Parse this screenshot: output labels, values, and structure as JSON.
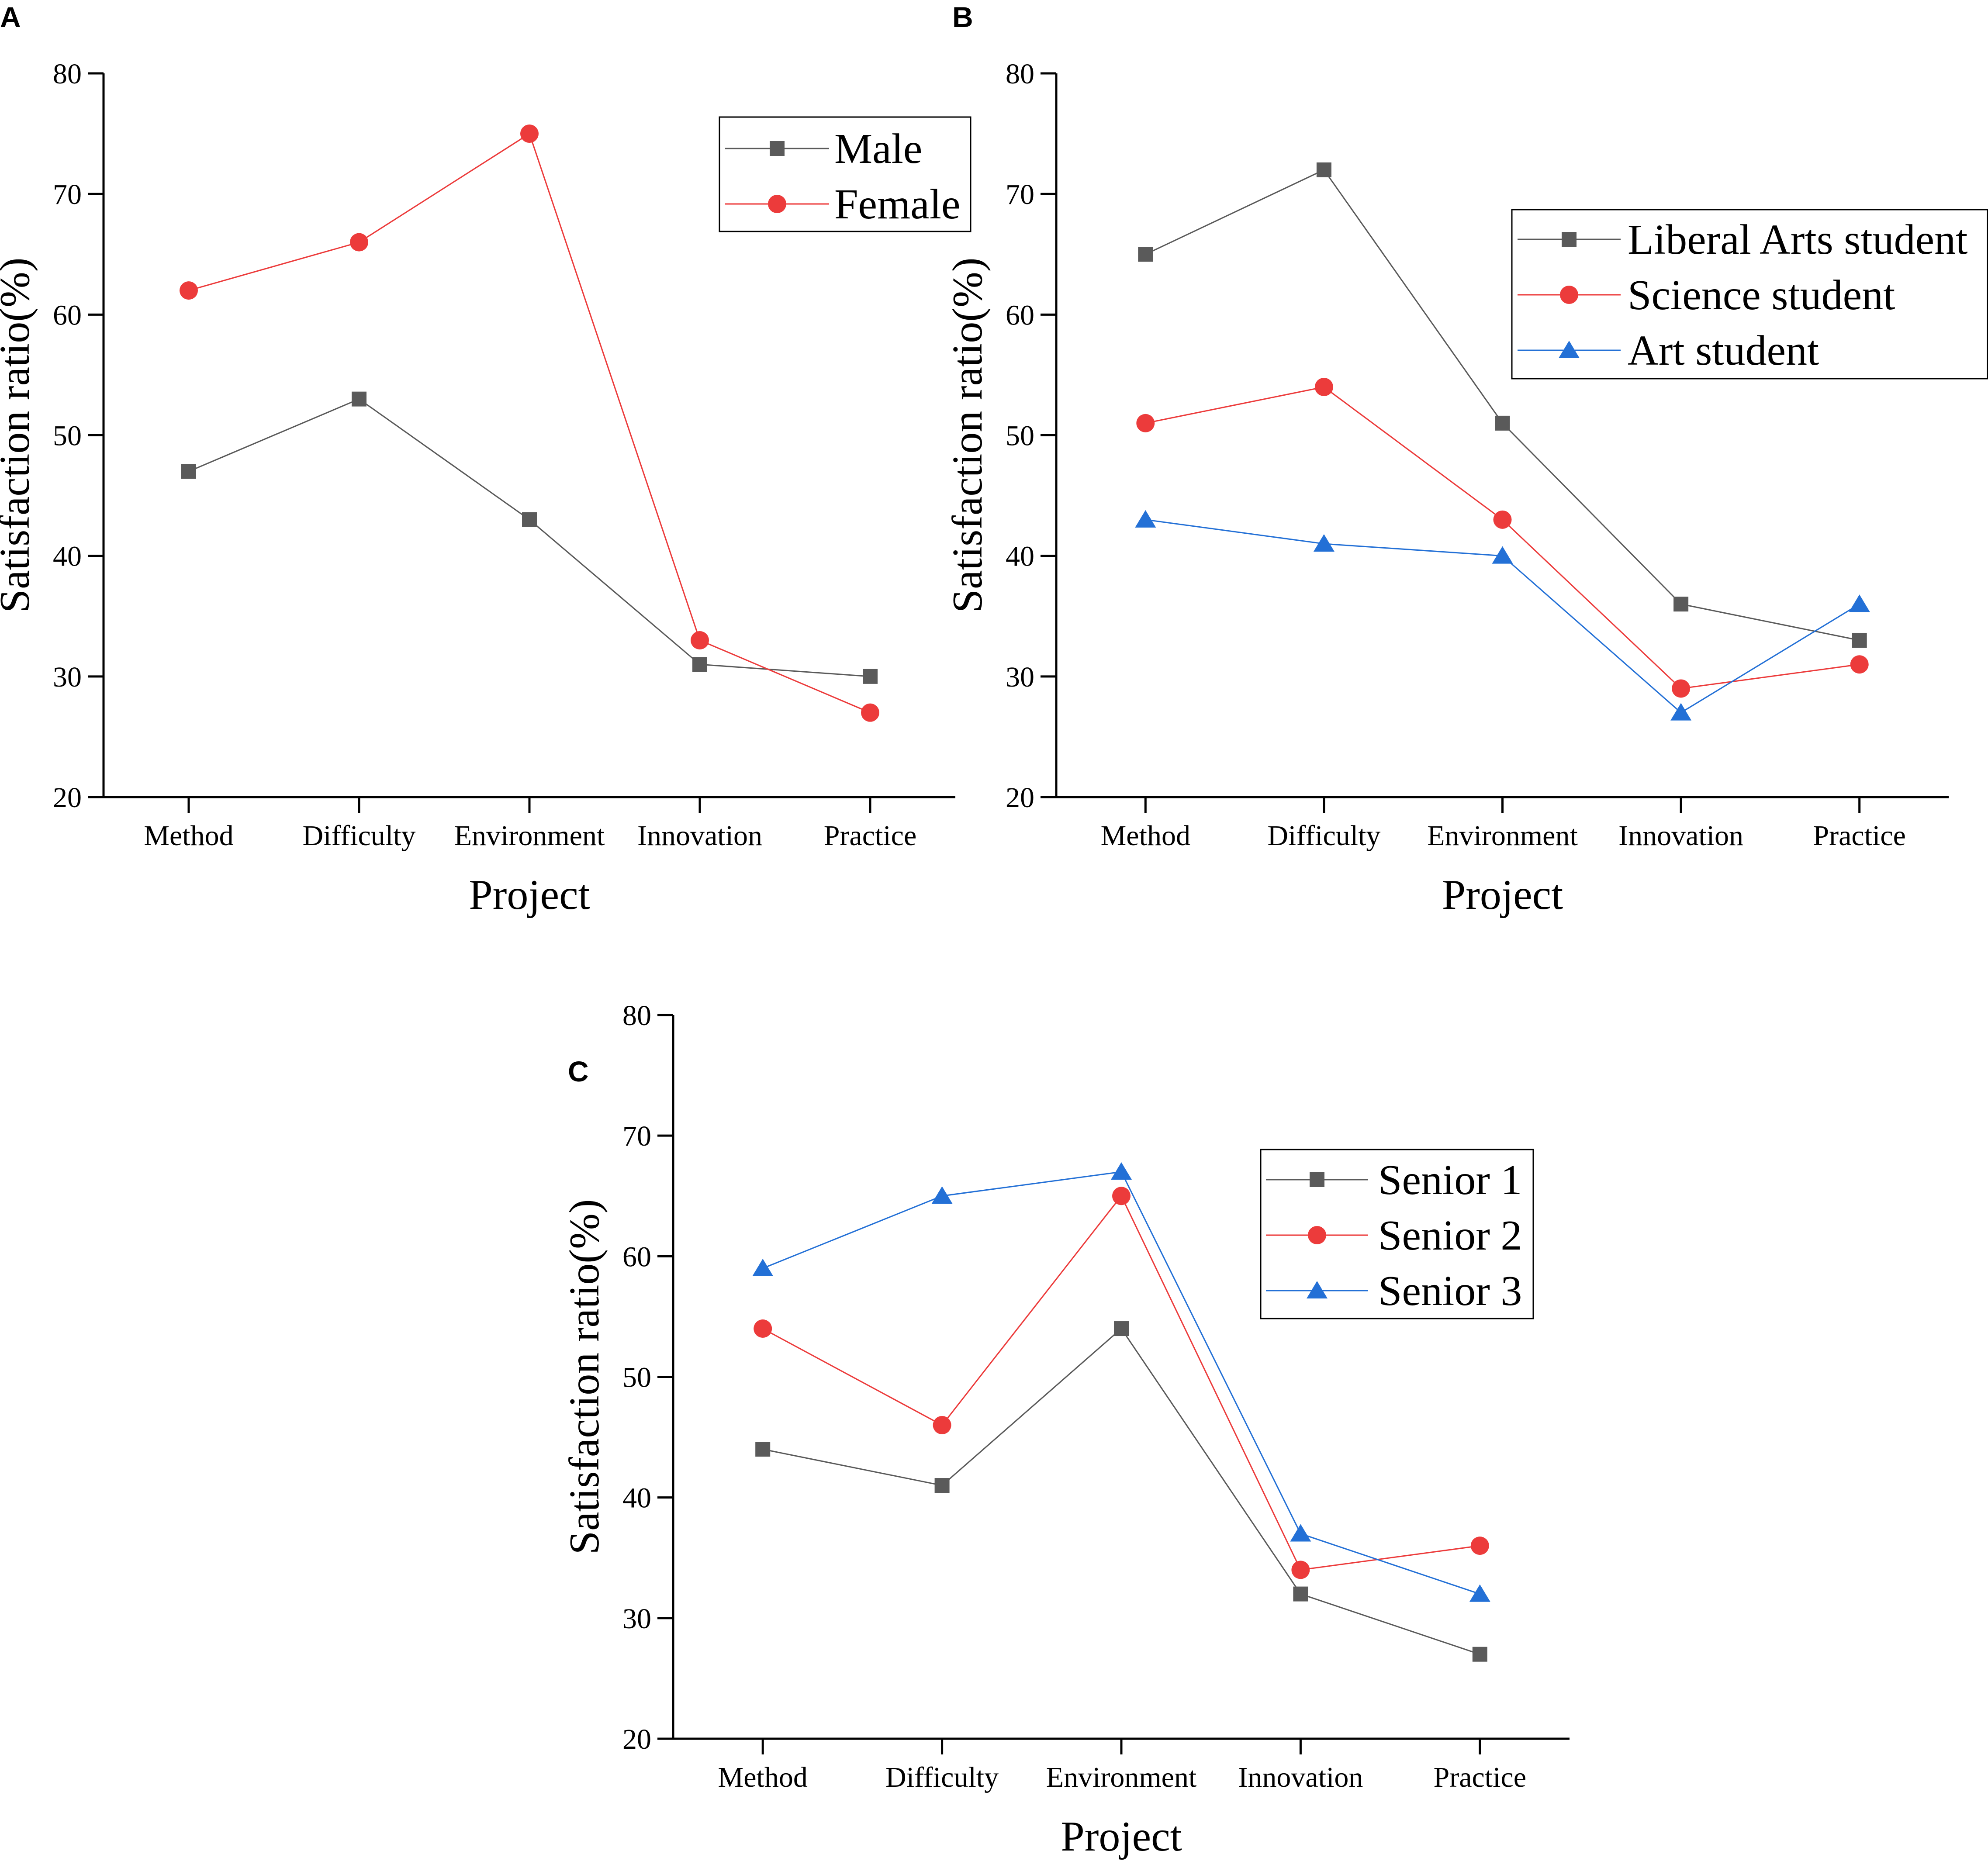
{
  "colors": {
    "gray": "#5a5a5a",
    "red": "#ec3b3b",
    "blue": "#2370d6",
    "axis": "#000000"
  },
  "chart_data": [
    {
      "panel": "A",
      "type": "line",
      "categories": [
        "Method",
        "Difficulty",
        "Environment",
        "Innovation",
        "Practice"
      ],
      "series": [
        {
          "name": "Male",
          "values": [
            47,
            53,
            43,
            31,
            30
          ],
          "color": "gray",
          "marker": "square"
        },
        {
          "name": "Female",
          "values": [
            62,
            66,
            75,
            33,
            27
          ],
          "color": "red",
          "marker": "circle"
        }
      ],
      "xlabel": "Project",
      "ylabel": "Satisfaction ratio(%)",
      "ylim": [
        20,
        80
      ],
      "yticks": [
        20,
        30,
        40,
        50,
        60,
        70,
        80
      ],
      "grid": false,
      "legend": "top-right"
    },
    {
      "panel": "B",
      "type": "line",
      "categories": [
        "Method",
        "Difficulty",
        "Environment",
        "Innovation",
        "Practice"
      ],
      "series": [
        {
          "name": "Liberal Arts student",
          "values": [
            65,
            72,
            51,
            36,
            33
          ],
          "color": "gray",
          "marker": "square"
        },
        {
          "name": "Science student",
          "values": [
            51,
            54,
            43,
            29,
            31
          ],
          "color": "red",
          "marker": "circle"
        },
        {
          "name": "Art student",
          "values": [
            43,
            41,
            40,
            27,
            36
          ],
          "color": "blue",
          "marker": "triangle"
        }
      ],
      "xlabel": "Project",
      "ylabel": "Satisfaction ratio(%)",
      "ylim": [
        20,
        80
      ],
      "yticks": [
        20,
        30,
        40,
        50,
        60,
        70,
        80
      ],
      "grid": false,
      "legend": "top-right"
    },
    {
      "panel": "C",
      "type": "line",
      "categories": [
        "Method",
        "Difficulty",
        "Environment",
        "Innovation",
        "Practice"
      ],
      "series": [
        {
          "name": "Senior 1",
          "values": [
            44,
            41,
            54,
            32,
            27
          ],
          "color": "gray",
          "marker": "square"
        },
        {
          "name": "Senior 2",
          "values": [
            54,
            46,
            65,
            34,
            36
          ],
          "color": "red",
          "marker": "circle"
        },
        {
          "name": "Senior 3",
          "values": [
            59,
            65,
            67,
            37,
            32
          ],
          "color": "blue",
          "marker": "triangle"
        }
      ],
      "xlabel": "Project",
      "ylabel": "Satisfaction ratio(%)",
      "ylim": [
        20,
        80
      ],
      "yticks": [
        20,
        30,
        40,
        50,
        60,
        70,
        80
      ],
      "grid": false,
      "legend": "top-right"
    }
  ]
}
